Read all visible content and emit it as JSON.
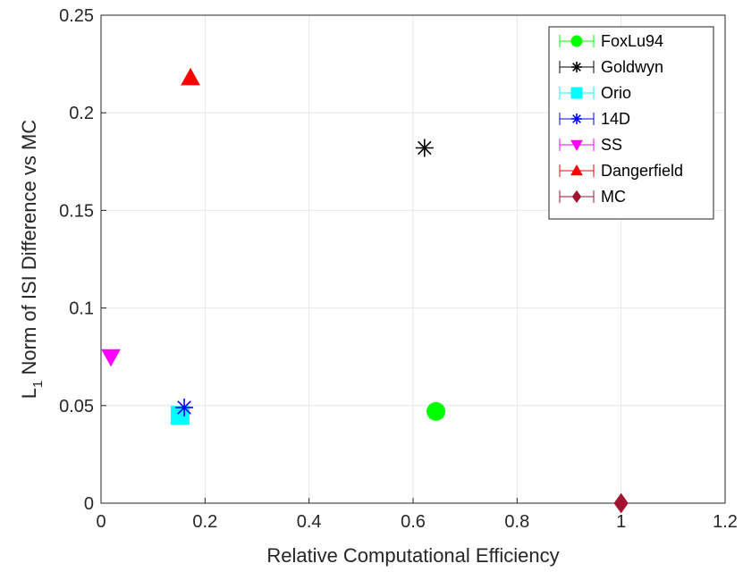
{
  "chart_data": {
    "type": "scatter",
    "xlabel": "Relative Computational Efficiency",
    "ylabel_main": "L",
    "ylabel_sub": "1",
    "ylabel_rest": " Norm of ISI Difference vs MC",
    "xlim": [
      0,
      1.2
    ],
    "ylim": [
      0,
      0.25
    ],
    "xticks": [
      "0",
      "0.2",
      "0.4",
      "0.6",
      "0.8",
      "1",
      "1.2"
    ],
    "yticks": [
      "0",
      "0.05",
      "0.1",
      "0.15",
      "0.2",
      "0.25"
    ],
    "grid": true,
    "legend_position": "top-right",
    "series": [
      {
        "name": "FoxLu94",
        "x": 0.644,
        "y": 0.047,
        "marker": "circle",
        "color": "#00ff00"
      },
      {
        "name": "Goldwyn",
        "x": 0.622,
        "y": 0.182,
        "marker": "asterisk",
        "color": "#000000"
      },
      {
        "name": "Orio",
        "x": 0.152,
        "y": 0.045,
        "marker": "square",
        "color": "#00ffff"
      },
      {
        "name": "14D",
        "x": 0.16,
        "y": 0.049,
        "marker": "asterisk",
        "color": "#0000ff"
      },
      {
        "name": "SS",
        "x": 0.019,
        "y": 0.075,
        "marker": "triangle-down",
        "color": "#ff00ff"
      },
      {
        "name": "Dangerfield",
        "x": 0.172,
        "y": 0.218,
        "marker": "triangle-up",
        "color": "#ff0000"
      },
      {
        "name": "MC",
        "x": 1.0,
        "y": 0.0,
        "marker": "diamond",
        "color": "#a2142f"
      }
    ]
  }
}
